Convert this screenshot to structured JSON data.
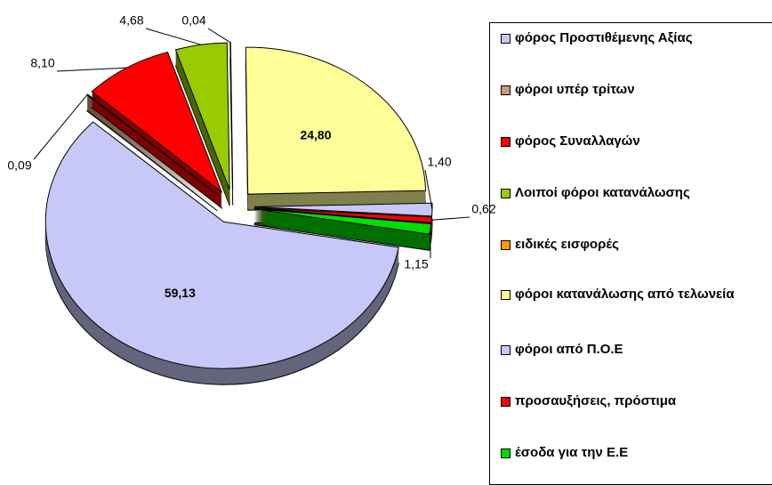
{
  "chart_data": {
    "type": "pie",
    "categories": [
      "φόρος Προστιθέμενης Αξίας",
      "φόροι υπέρ τρίτων",
      "φόρος Συναλλαγών",
      "Λοιποί φόροι κατανάλωσης",
      "ειδικές εισφορές",
      "φόροι κατανάλωσης από τελωνεία",
      "φόροι από Π.Ο.Ε",
      "προσαυξήσεις, πρόστιμα",
      "έσοδα για την Ε.Ε"
    ],
    "values": [
      59.13,
      0.09,
      8.1,
      4.68,
      0.04,
      24.8,
      1.4,
      0.62,
      1.15
    ],
    "value_labels": [
      "59,13",
      "0,09",
      "8,10",
      "4,68",
      "0,04",
      "24,80",
      "1,40",
      "0,62",
      "1,15"
    ],
    "colors": [
      "#c8c8f8",
      "#cc9977",
      "#ff0000",
      "#99cc00",
      "#ff9900",
      "#ffff99",
      "#c8c8f8",
      "#ff0000",
      "#00dd00"
    ],
    "legend": "right"
  }
}
